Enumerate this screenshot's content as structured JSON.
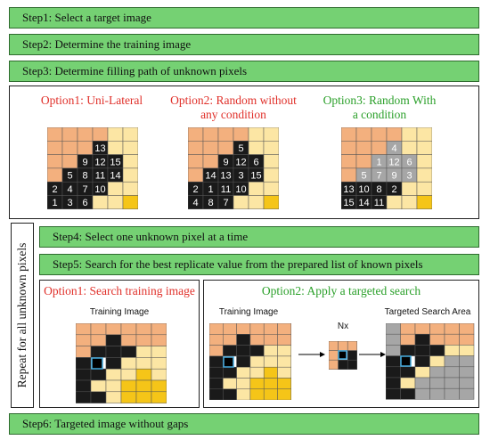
{
  "steps": {
    "step1": "Step1: Select a target image",
    "step2": "Step2: Determine the training image",
    "step3": "Step3: Determine filling path of unknown pixels",
    "step4": "Step4: Select one unknown pixel at a time",
    "step5": "Step5: Search for the best replicate value from the prepared list of known pixels",
    "step6": "Step6: Targeted image without gaps"
  },
  "sidebar_label": "Repeat for all unknown pixels",
  "fill_path": {
    "option1_title": "Option1: Uni-Lateral",
    "option2_title": "Option2: Random without any condition",
    "option3_title": "Option3: Random With a condition"
  },
  "search": {
    "option1_title": "Option1: Search training image",
    "option2_title": "Option2: Apply a targeted search",
    "training_image_label": "Training Image",
    "nx_label": "Nx",
    "targeted_area_label": "Targeted Search Area"
  },
  "colors": {
    "step_green": "#75d173",
    "option_red": "#e0302a",
    "option_green": "#2ba02a",
    "unknown_black": "#1a1a1a",
    "grey_cell": "#a6a6a6",
    "orange_cell": "#f3b07e",
    "light_yellow_cell": "#fce6a4",
    "yellow_cell": "#f5c518"
  },
  "grids": {
    "grid1": {
      "numbers": [
        [
          null,
          null,
          null,
          null,
          null,
          null
        ],
        [
          null,
          null,
          null,
          "13",
          null,
          null
        ],
        [
          null,
          null,
          "9",
          "12",
          "15",
          null
        ],
        [
          null,
          "5",
          "8",
          "11",
          "14",
          null
        ],
        [
          "2",
          "4",
          "7",
          "10",
          null,
          null
        ],
        [
          "1",
          "3",
          "6",
          null,
          null,
          null
        ]
      ]
    },
    "grid2": {
      "numbers": [
        [
          null,
          null,
          null,
          null,
          null,
          null
        ],
        [
          null,
          null,
          null,
          "5",
          null,
          null
        ],
        [
          null,
          null,
          "9",
          "12",
          "6",
          null
        ],
        [
          null,
          "14",
          "13",
          "3",
          "15",
          null
        ],
        [
          "2",
          "1",
          "11",
          "10",
          null,
          null
        ],
        [
          "4",
          "8",
          "7",
          null,
          null,
          null
        ]
      ]
    },
    "grid3": {
      "numbers": [
        [
          null,
          null,
          null,
          null,
          null,
          null
        ],
        [
          null,
          null,
          null,
          "4",
          null,
          null
        ],
        [
          null,
          null,
          "1",
          "12",
          "6",
          null
        ],
        [
          null,
          "5",
          "7",
          "9",
          "3",
          null
        ],
        [
          "13",
          "10",
          "8",
          "2",
          null,
          null
        ],
        [
          "15",
          "14",
          "11",
          null,
          null,
          null
        ]
      ]
    }
  }
}
